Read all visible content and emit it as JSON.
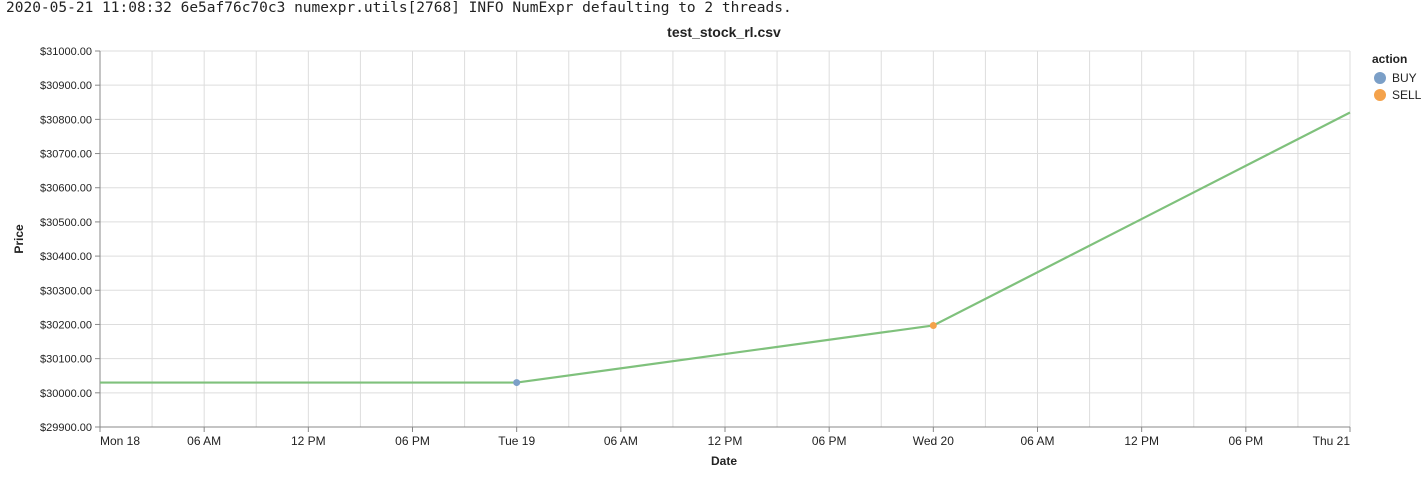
{
  "log_line": "2020-05-21 11:08:32 6e5af76c70c3 numexpr.utils[2768] INFO NumExpr defaulting to 2 threads.",
  "chart_data": {
    "type": "line",
    "title": "test_stock_rl.csv",
    "xlabel": "Date",
    "ylabel": "Price",
    "x_tick_labels": [
      "Mon 18",
      "06 AM",
      "12 PM",
      "06 PM",
      "Tue 19",
      "06 AM",
      "12 PM",
      "06 PM",
      "Wed 20",
      "06 AM",
      "12 PM",
      "06 PM",
      "Thu 21"
    ],
    "y_tick_labels": [
      "$29900.00",
      "$30000.00",
      "$30100.00",
      "$30200.00",
      "$30300.00",
      "$30400.00",
      "$30500.00",
      "$30600.00",
      "$30700.00",
      "$30800.00",
      "$30900.00",
      "$31000.00"
    ],
    "xlim": [
      "2020-05-18T00:00",
      "2020-05-21T00:00"
    ],
    "ylim": [
      29900,
      31000
    ],
    "grid": true,
    "series": [
      {
        "color": "#7fc17c",
        "x": [
          "2020-05-18T00:00",
          "2020-05-19T00:00",
          "2020-05-20T00:00",
          "2020-05-21T00:00"
        ],
        "y": [
          30030,
          30030,
          30197,
          30820
        ]
      }
    ],
    "points": [
      {
        "x": "2020-05-19T00:00",
        "y": 30030,
        "action": "BUY"
      },
      {
        "x": "2020-05-20T00:00",
        "y": 30197,
        "action": "SELL"
      }
    ],
    "legend": {
      "title": "action",
      "position": "top-right",
      "entries": [
        {
          "label": "BUY",
          "color": "#7b9fc7"
        },
        {
          "label": "SELL",
          "color": "#f4a24b"
        }
      ]
    }
  }
}
